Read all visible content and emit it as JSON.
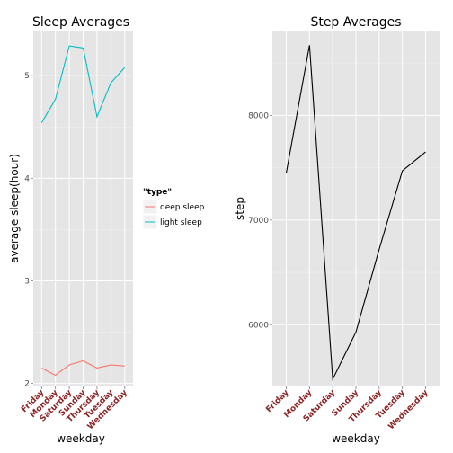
{
  "chart_data": [
    {
      "type": "line",
      "title": "Sleep Averages",
      "xlabel": "weekday",
      "ylabel": "average sleep(hour)",
      "categories": [
        "Friday",
        "Monday",
        "Saturday",
        "Sunday",
        "Thursday",
        "Tuesday",
        "Wednesday"
      ],
      "ylim": [
        1.97,
        5.44
      ],
      "yticks": [
        2,
        3,
        4,
        5
      ],
      "grid": true,
      "legend": {
        "title": "\"type\"",
        "position": "right",
        "entries": [
          "deep sleep",
          "light sleep"
        ]
      },
      "series": [
        {
          "name": "deep sleep",
          "color": "#F8766D",
          "values": [
            2.15,
            2.08,
            2.18,
            2.22,
            2.15,
            2.18,
            2.17
          ]
        },
        {
          "name": "light sleep",
          "color": "#00BFC4",
          "values": [
            4.54,
            4.77,
            5.29,
            5.27,
            4.6,
            4.93,
            5.08
          ]
        }
      ]
    },
    {
      "type": "line",
      "title": "Step Averages",
      "xlabel": "weekday",
      "ylabel": "step",
      "categories": [
        "Friday",
        "Monday",
        "Saturday",
        "Sunday",
        "Thursday",
        "Tuesday",
        "Wednesday"
      ],
      "ylim": [
        5410,
        8810
      ],
      "yticks": [
        6000,
        7000,
        8000
      ],
      "grid": true,
      "series": [
        {
          "color": "#000000",
          "values": [
            7450,
            8670,
            5480,
            5930,
            6720,
            7470,
            7650
          ]
        }
      ]
    }
  ]
}
